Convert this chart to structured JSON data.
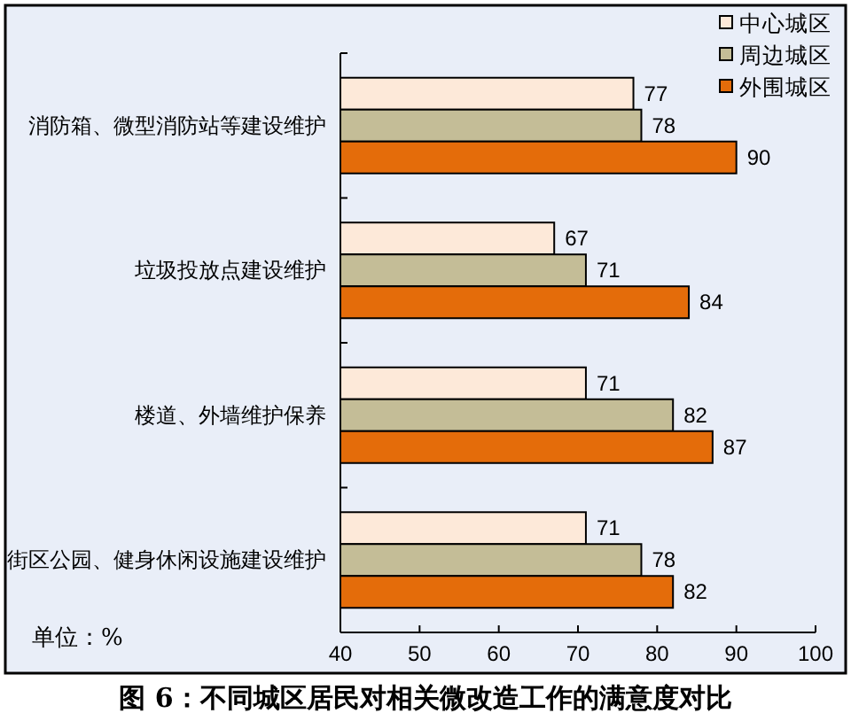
{
  "chart_data": {
    "type": "bar",
    "orientation": "horizontal",
    "title": "图 6：不同城区居民对相关微改造工作的满意度对比",
    "annotations": [
      "单位：%"
    ],
    "categories": [
      "消防箱、微型消防站等建设维护",
      "垃圾投放点建设维护",
      "楼道、外墙维护保养",
      "街区公园、健身休闲设施建设维护"
    ],
    "series": [
      {
        "name": "中心城区",
        "color": "#fde9d9",
        "values": [
          77,
          67,
          71,
          71
        ]
      },
      {
        "name": "周边城区",
        "color": "#c4bd97",
        "values": [
          78,
          71,
          82,
          78
        ]
      },
      {
        "name": "外围城区",
        "color": "#e46c0a",
        "values": [
          90,
          84,
          87,
          82
        ]
      }
    ],
    "xlim": [
      40,
      100
    ],
    "xticks": [
      40,
      50,
      60,
      70,
      80,
      90,
      100
    ],
    "data_labels": true,
    "legend": "top right",
    "grid": false
  }
}
